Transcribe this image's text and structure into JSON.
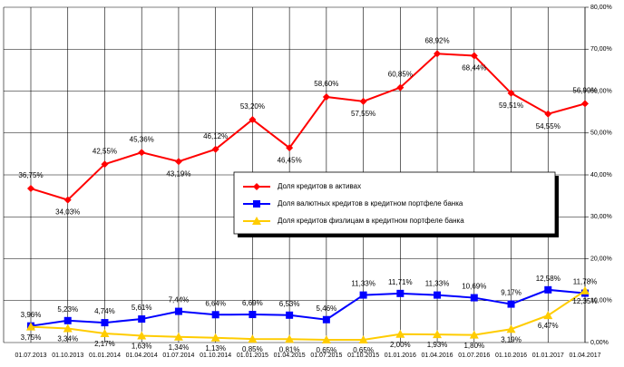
{
  "chart_data": {
    "type": "line",
    "x": [
      "01.07.2013",
      "01.10.2013",
      "01.01.2014",
      "01.04.2014",
      "01.07.2014",
      "01.10.2014",
      "01.01.2015",
      "01.04.2015",
      "01.07.2015",
      "01.10.2015",
      "01.01.2016",
      "01.04.2016",
      "01.07.2016",
      "01.10.2016",
      "01.01.2017",
      "01.04.2017"
    ],
    "series": [
      {
        "name": "Доля кредитов в активах",
        "color": "#ff0000",
        "marker": "diamond",
        "values": [
          36.75,
          34.03,
          42.55,
          45.36,
          43.19,
          46.12,
          53.2,
          46.45,
          58.6,
          57.55,
          60.85,
          68.92,
          68.44,
          59.51,
          54.55,
          56.99
        ],
        "value_labels": [
          "36,75%",
          "34,03%",
          "42,55%",
          "45,36%",
          "43,19%",
          "46,12%",
          "53,20%",
          "46,45%",
          "58,60%",
          "57,55%",
          "60,85%",
          "68,92%",
          "68,44%",
          "59,51%",
          "54,55%",
          "56,99%"
        ]
      },
      {
        "name": "Доля валютных кредитов в кредитном портфеле банка",
        "color": "#0000ff",
        "marker": "square",
        "values": [
          3.96,
          5.23,
          4.74,
          5.61,
          7.44,
          6.64,
          6.69,
          6.53,
          5.46,
          11.33,
          11.71,
          11.33,
          10.69,
          9.17,
          12.58,
          11.78
        ],
        "value_labels": [
          "3,96%",
          "5,23%",
          "4,74%",
          "5,61%",
          "7,44%",
          "6,64%",
          "6,69%",
          "6,53%",
          "5,46%",
          "11,33%",
          "11,71%",
          "11,33%",
          "10,69%",
          "9,17%",
          "12,58%",
          "11,78%"
        ]
      },
      {
        "name": "Доля кредитов физлицам в кредитном портфеле банка",
        "color": "#ffcc00",
        "marker": "triangle",
        "values": [
          3.75,
          3.34,
          2.17,
          1.63,
          1.34,
          1.13,
          0.85,
          0.81,
          0.65,
          0.65,
          2.0,
          1.93,
          1.8,
          3.19,
          6.47,
          12.35
        ],
        "value_labels": [
          "3,75%",
          "3,34%",
          "2,17%",
          "1,63%",
          "1,34%",
          "1,13%",
          "0,85%",
          "0,81%",
          "0,65%",
          "0,65%",
          "2,00%",
          "1,93%",
          "1,80%",
          "3,19%",
          "6,47%",
          "12,35%"
        ]
      }
    ],
    "ylim": [
      0,
      80
    ],
    "yticks": [
      {
        "value": 0,
        "label": "0,00%"
      },
      {
        "value": 10,
        "label": "10,00%"
      },
      {
        "value": 20,
        "label": "20,00%"
      },
      {
        "value": 30,
        "label": "30,00%"
      },
      {
        "value": 40,
        "label": "40,00%"
      },
      {
        "value": 50,
        "label": "50,00%"
      },
      {
        "value": 60,
        "label": "60,00%"
      },
      {
        "value": 70,
        "label": "70,00%"
      },
      {
        "value": 80,
        "label": "80,00%"
      }
    ],
    "grid": true,
    "legend": "center-right"
  }
}
